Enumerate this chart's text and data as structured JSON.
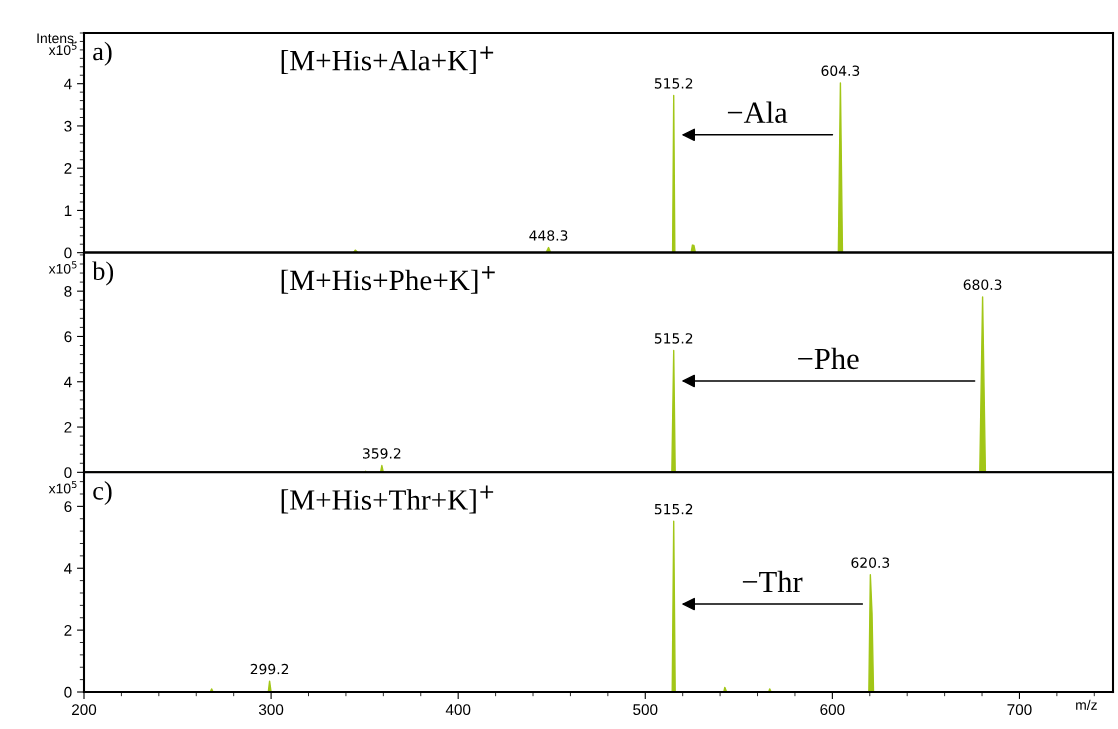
{
  "chart_data": [
    {
      "type": "area",
      "title": "[M+His+Ala+K]$^{+}$",
      "ylabel": "Intens.\nx10$^{5}$",
      "xlim": [
        200,
        750
      ],
      "xticks": [
        200,
        300,
        400,
        500,
        600,
        700
      ],
      "ylim": [
        0,
        5.2
      ],
      "yticks": [
        0,
        1,
        2,
        3,
        4
      ],
      "tick_labels": "y",
      "grid": false,
      "series": [
        {
          "color": "#a2c617",
          "x": [
            200,
            344,
            345,
            346.5,
            447,
            448.3,
            449.5,
            514.6,
            515.2,
            515.8,
            524.5,
            525.2,
            526,
            526.8,
            603.2,
            604.3,
            605.4,
            750
          ],
          "values": [
            0,
            0,
            0.06,
            0,
            0,
            0.12,
            0,
            0,
            3.72,
            0,
            0,
            0.18,
            0.17,
            0,
            0,
            4.02,
            0,
            0
          ]
        }
      ],
      "annotations": [
        "a)",
        {
          "text": "448.3",
          "x": 448.3,
          "y": 0.12
        },
        {
          "text": "515.2",
          "x": 515.2,
          "y": 3.72
        },
        {
          "text": "604.3",
          "x": 604.3,
          "y": 4.02
        },
        "−Ala"
      ]
    },
    {
      "type": "area",
      "title": "[M+His+Phe+K]$^{+}$",
      "ylabel": "x10$^{5}$",
      "xlim": [
        200,
        750
      ],
      "xticks": [
        200,
        300,
        400,
        500,
        600,
        700
      ],
      "ylim": [
        0,
        9.7
      ],
      "yticks": [
        0,
        2,
        4,
        6,
        8
      ],
      "tick_labels": "y",
      "grid": false,
      "series": [
        {
          "color": "#a2c617",
          "x": [
            200,
            350,
            350.5,
            351,
            358.5,
            359.2,
            360,
            514.2,
            515.2,
            516,
            678.8,
            680.3,
            681.8,
            750
          ],
          "values": [
            0,
            0,
            0.05,
            0,
            0,
            0.3,
            0,
            0,
            5.38,
            0,
            0,
            7.75,
            0,
            0
          ]
        }
      ],
      "annotations": [
        "b)",
        {
          "text": "359.2",
          "x": 359.2,
          "y": 0.3
        },
        {
          "text": "515.2",
          "x": 515.2,
          "y": 5.38
        },
        {
          "text": "680.3",
          "x": 680.3,
          "y": 7.75
        },
        "−Phe"
      ]
    },
    {
      "type": "area",
      "title": "[M+His+Thr+K]$^{+}$",
      "ylabel": "x10$^{5}$",
      "xlabel": "m/z",
      "xlim": [
        200,
        750
      ],
      "xticks": [
        200,
        300,
        400,
        500,
        600,
        700
      ],
      "ylim": [
        0,
        7.1
      ],
      "yticks": [
        0,
        2,
        4,
        6
      ],
      "grid": false,
      "series": [
        {
          "color": "#a2c617",
          "x": [
            200,
            267.5,
            268.2,
            269,
            298.5,
            299.2,
            300,
            514.4,
            515.2,
            516,
            542,
            542.5,
            543.5,
            566,
            566.5,
            567.3,
            619.5,
            620.3,
            621.2,
            622,
            750
          ],
          "values": [
            0,
            0,
            0.1,
            0,
            0,
            0.35,
            0,
            0,
            5.52,
            0,
            0,
            0.15,
            0,
            0,
            0.1,
            0,
            0,
            3.79,
            2.55,
            0,
            0
          ]
        }
      ],
      "annotations": [
        "c)",
        {
          "text": "299.2",
          "x": 299.2,
          "y": 0.35
        },
        {
          "text": "515.2",
          "x": 515.2,
          "y": 5.52
        },
        {
          "text": "620.3",
          "x": 620.3,
          "y": 3.79
        },
        "−Thr"
      ]
    }
  ]
}
